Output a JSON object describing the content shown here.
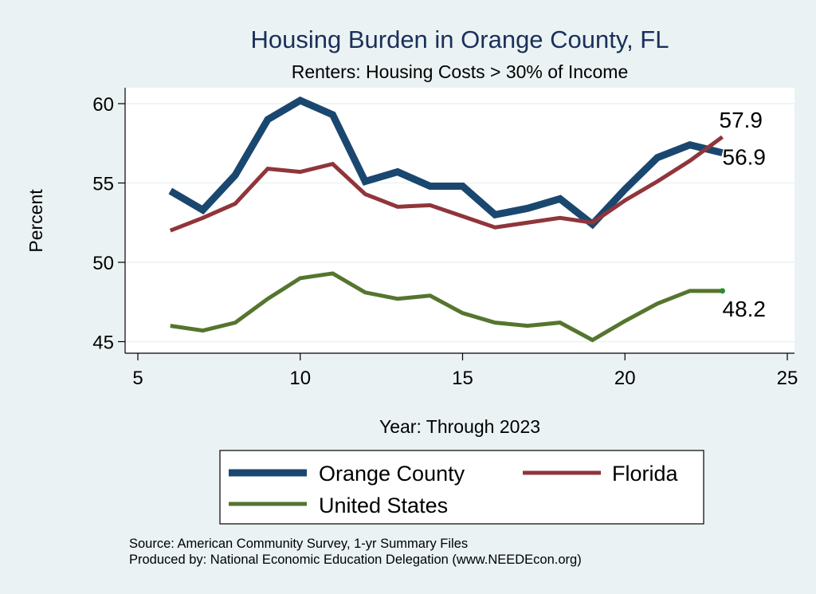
{
  "chart_data": {
    "type": "line",
    "title": "Housing Burden in Orange County, FL",
    "subtitle": "Renters: Housing Costs > 30% of Income",
    "xlabel": "Year: Through 2023",
    "ylabel": "Percent",
    "xlim": [
      5,
      25
    ],
    "ylim": [
      45,
      60
    ],
    "xticks": [
      5,
      10,
      15,
      20,
      25
    ],
    "yticks": [
      45,
      50,
      55,
      60
    ],
    "grid": true,
    "legend_position": "bottom",
    "x": [
      6,
      7,
      8,
      9,
      10,
      11,
      12,
      13,
      14,
      15,
      16,
      17,
      18,
      19,
      20,
      21,
      22,
      23
    ],
    "series": [
      {
        "name": "Orange County",
        "color": "#1a476f",
        "values": [
          54.5,
          53.3,
          55.5,
          59.0,
          60.2,
          59.3,
          55.1,
          55.7,
          54.8,
          54.8,
          53.0,
          53.4,
          54.0,
          52.4,
          54.6,
          56.6,
          57.4,
          56.9
        ],
        "end_label": "56.9"
      },
      {
        "name": "Florida",
        "color": "#90353b",
        "values": [
          52.0,
          52.8,
          53.7,
          55.9,
          55.7,
          56.2,
          54.3,
          53.5,
          53.6,
          52.9,
          52.2,
          52.5,
          52.8,
          52.5,
          53.9,
          55.1,
          56.4,
          57.9
        ],
        "end_label": "57.9"
      },
      {
        "name": "United States",
        "color": "#55752f",
        "values": [
          46.0,
          45.7,
          46.2,
          47.7,
          49.0,
          49.3,
          48.1,
          47.7,
          47.9,
          46.8,
          46.2,
          46.0,
          46.2,
          45.1,
          46.3,
          47.4,
          48.2,
          48.2
        ],
        "end_label": "48.2"
      }
    ],
    "notes": [
      "Source: American Community Survey, 1-yr Summary Files",
      "Produced by: National Economic Education Delegation (www.NEEDEcon.org)"
    ]
  }
}
